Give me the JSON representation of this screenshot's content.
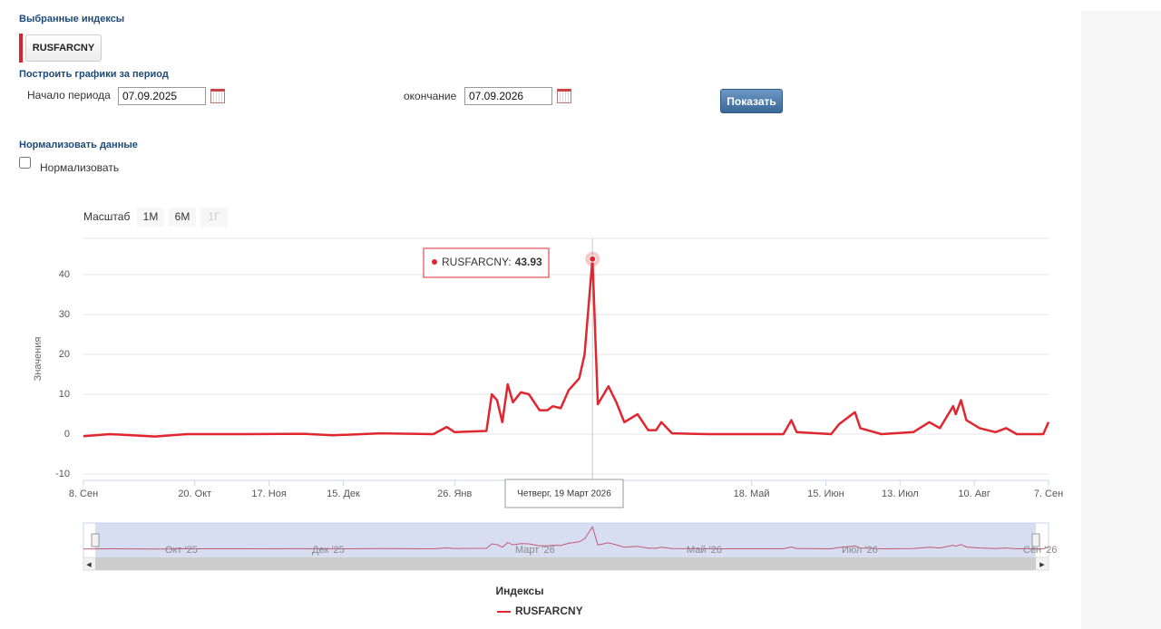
{
  "form": {
    "selected_title": "Выбранные индексы",
    "selected_index": "RUSFARCNY",
    "period_title": "Построить графики за период",
    "start_label": "Начало периода",
    "start_value": "07.09.2025",
    "end_label": "окончание",
    "end_value": "07.09.2026",
    "show_button": "Показать",
    "normalize_title": "Нормализовать данные",
    "normalize_label": "Нормализовать",
    "normalize_checked": false
  },
  "chart_data": {
    "type": "line",
    "zoom_label": "Масштаб",
    "zoom_buttons": [
      "1М",
      "6М",
      "1Г"
    ],
    "y_label": "Значения",
    "ylim": [
      -10,
      50
    ],
    "yticks": [
      -10,
      0,
      10,
      20,
      30,
      40
    ],
    "grid": true,
    "xlim": [
      "2025-09-08",
      "2026-09-07"
    ],
    "xticks": [
      {
        "value": "2025-09-08",
        "label": "8. Сен"
      },
      {
        "value": "2025-10-20",
        "label": "20. Окт"
      },
      {
        "value": "2025-11-17",
        "label": "17. Ноя"
      },
      {
        "value": "2025-12-15",
        "label": "15. Дек"
      },
      {
        "value": "2026-01-26",
        "label": "26. Янв"
      },
      {
        "value": "2026-05-18",
        "label": "18. Май"
      },
      {
        "value": "2026-06-15",
        "label": "15. Июн"
      },
      {
        "value": "2026-07-13",
        "label": "13. Июл"
      },
      {
        "value": "2026-08-10",
        "label": "10. Авг"
      },
      {
        "value": "2026-09-07",
        "label": "7. Сен"
      }
    ],
    "x": [
      "2025-09-08",
      "2025-09-18",
      "2025-10-05",
      "2025-10-17",
      "2025-11-08",
      "2025-11-30",
      "2025-12-11",
      "2025-12-29",
      "2026-01-18",
      "2026-01-23",
      "2026-01-26",
      "2026-02-07",
      "2026-02-09",
      "2026-02-11",
      "2026-02-13",
      "2026-02-15",
      "2026-02-17",
      "2026-02-20",
      "2026-02-23",
      "2026-02-27",
      "2026-03-02",
      "2026-03-04",
      "2026-03-07",
      "2026-03-10",
      "2026-03-14",
      "2026-03-16",
      "2026-03-19",
      "2026-03-21",
      "2026-03-25",
      "2026-03-28",
      "2026-03-31",
      "2026-04-05",
      "2026-04-09",
      "2026-04-12",
      "2026-04-14",
      "2026-04-18",
      "2026-05-02",
      "2026-05-30",
      "2026-06-02",
      "2026-06-04",
      "2026-06-17",
      "2026-06-20",
      "2026-06-26",
      "2026-06-28",
      "2026-07-06",
      "2026-07-18",
      "2026-07-24",
      "2026-07-28",
      "2026-08-02",
      "2026-08-03",
      "2026-08-05",
      "2026-08-07",
      "2026-08-12",
      "2026-08-18",
      "2026-08-22",
      "2026-08-26",
      "2026-09-05",
      "2026-09-07"
    ],
    "series": [
      {
        "name": "RUSFARCNY",
        "color": "#e0262f",
        "values": [
          -0.5,
          0,
          -0.6,
          0,
          0,
          0.1,
          -0.3,
          0.2,
          0,
          1.8,
          0.5,
          0.8,
          10,
          8.5,
          3,
          12.5,
          8,
          10.5,
          10,
          6,
          6,
          7,
          6.5,
          11,
          14,
          20,
          43.93,
          7.5,
          12,
          8,
          3,
          5,
          1,
          1,
          3,
          0.2,
          0,
          0,
          3.5,
          0.5,
          0,
          2.5,
          5.5,
          1.5,
          0,
          0.5,
          3,
          1.5,
          7,
          5,
          8.5,
          3.5,
          1.5,
          0.5,
          1.5,
          0,
          0,
          3
        ]
      }
    ],
    "tooltip": {
      "series_label": "RUSFARCNY:",
      "date": "Четверг, 19 Март 2026"
    },
    "navigator_labels": [
      "Окт '25",
      "Дек '25",
      "Март '26",
      "Май '26",
      "Июл '26",
      "Сен '26"
    ],
    "legend_title": "Индексы"
  }
}
